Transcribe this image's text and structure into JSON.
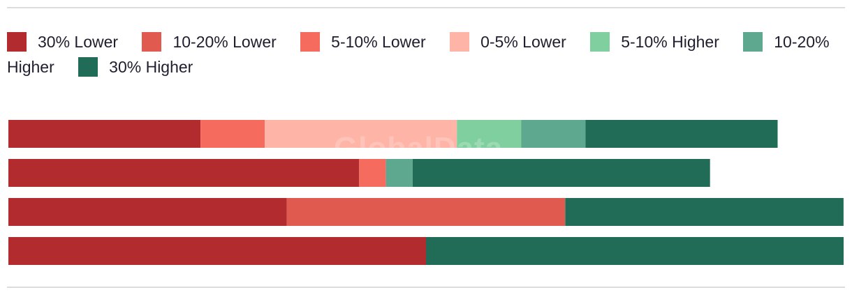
{
  "chart_data": {
    "type": "bar",
    "orientation": "horizontal",
    "stacked": true,
    "title": "",
    "xlabel": "",
    "ylabel": "",
    "categories": [
      "",
      "",
      "",
      ""
    ],
    "series": [
      {
        "name": "30% Lower",
        "color": "#b22c2f",
        "values": [
          23,
          42,
          33.33,
          50
        ]
      },
      {
        "name": "10-20% Lower",
        "color": "#e05a4f",
        "values": [
          0,
          0,
          33.33,
          0
        ]
      },
      {
        "name": "5-10% Lower",
        "color": "#f56c5e",
        "values": [
          7.7,
          3.2,
          0,
          0
        ]
      },
      {
        "name": "0-5% Lower",
        "color": "#feb4a6",
        "values": [
          23,
          0,
          0,
          0
        ]
      },
      {
        "name": "5-10% Higher",
        "color": "#80d09f",
        "values": [
          7.7,
          0,
          0,
          0
        ]
      },
      {
        "name": "10-20% Higher",
        "color": "#5fa890",
        "values": [
          7.7,
          3.2,
          0,
          0
        ]
      },
      {
        "name": "30% Higher",
        "color": "#216c57",
        "values": [
          23,
          35.6,
          33.33,
          50
        ]
      }
    ],
    "xlim": [
      0,
      100
    ],
    "grid": false,
    "legend_position": "top-left"
  },
  "watermark": "GlobalData"
}
